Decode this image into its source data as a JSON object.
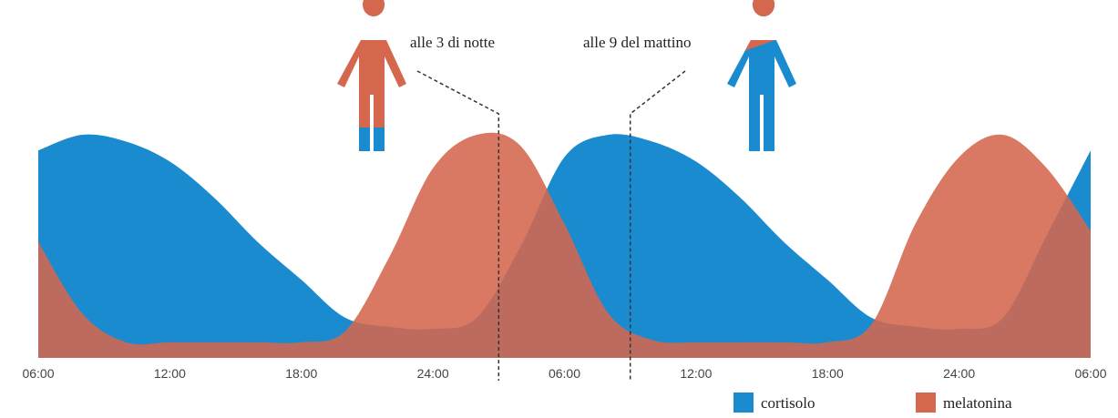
{
  "chart_data": {
    "type": "area",
    "x": [
      0,
      2,
      4,
      6,
      8,
      10,
      12,
      14,
      16,
      18,
      20,
      22,
      24,
      26,
      28,
      30,
      32,
      34,
      36,
      38,
      40,
      42,
      44,
      46,
      48
    ],
    "xlim": [
      0,
      48
    ],
    "xticks": [
      {
        "value": 0,
        "label": "06:00"
      },
      {
        "value": 6,
        "label": "12:00"
      },
      {
        "value": 12,
        "label": "18:00"
      },
      {
        "value": 18,
        "label": "24:00"
      },
      {
        "value": 24,
        "label": "06:00"
      },
      {
        "value": 30,
        "label": "12:00"
      },
      {
        "value": 36,
        "label": "18:00"
      },
      {
        "value": 42,
        "label": "24:00"
      },
      {
        "value": 48,
        "label": "06:00"
      }
    ],
    "ylim": [
      0,
      100
    ],
    "series": [
      {
        "name": "cortisolo",
        "color": "#1a8bcf",
        "values": [
          93,
          100,
          97,
          88,
          72,
          52,
          35,
          18,
          14,
          13,
          18,
          50,
          90,
          100,
          97,
          88,
          72,
          52,
          35,
          18,
          14,
          13,
          18,
          55,
          93
        ]
      },
      {
        "name": "melatonina",
        "color": "#d4674e",
        "values": [
          52,
          20,
          7,
          7,
          7,
          7,
          7,
          12,
          45,
          85,
          100,
          95,
          60,
          20,
          8,
          7,
          7,
          7,
          7,
          15,
          60,
          90,
          100,
          85,
          57
        ]
      }
    ],
    "annotations": [
      {
        "text": "alle 3 di notte",
        "x": 21
      },
      {
        "text": "alle 9 del mattino",
        "x": 27
      }
    ]
  }
}
